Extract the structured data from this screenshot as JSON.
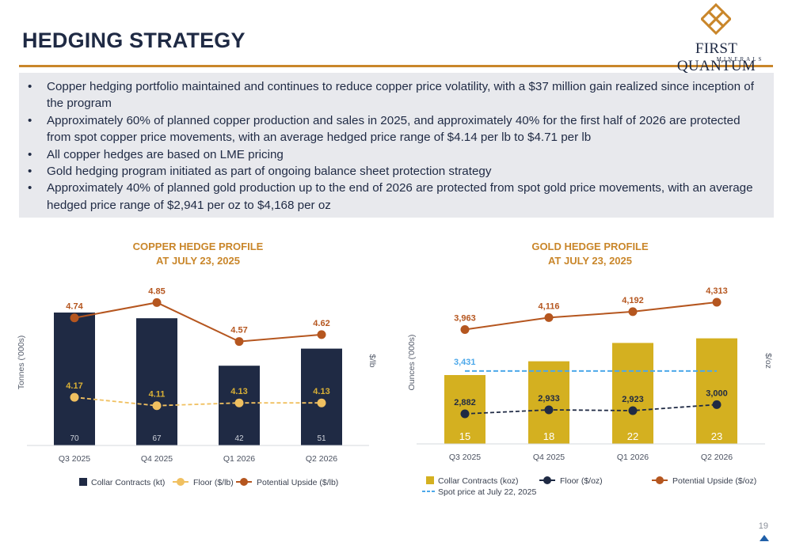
{
  "page": {
    "title": "HEDGING STRATEGY",
    "logo_name": "FIRST QUANTUM",
    "logo_sub": "MINERALS",
    "page_number": "19",
    "accent_color": "#c9862a",
    "navy_color": "#1f2a44"
  },
  "bullets": [
    "Copper hedging portfolio maintained and continues to reduce copper price volatility, with a $37 million gain realized since inception of the program",
    "Approximately 60% of planned copper production and sales in 2025, and approximately 40% for the first half of 2026 are protected from spot copper price movements, with an average hedged price range of $4.14 per lb to $4.71 per lb",
    "All copper hedges are based on LME pricing",
    "Gold hedging program initiated as part of ongoing balance sheet protection strategy",
    "Approximately 40% of planned gold production up to the end of 2026 are protected from spot gold price movements, with an average hedged price range of $2,941 per oz to $4,168 per oz"
  ],
  "chart_data": [
    {
      "type": "bar",
      "title": "COPPER HEDGE PROFILE",
      "subtitle": "AT JULY 23, 2025",
      "categories": [
        "Q3 2025",
        "Q4 2025",
        "Q1 2026",
        "Q2 2026"
      ],
      "ylabel": "Tonnes ('000s)",
      "y2label": "$/lb",
      "bar_color": "#1f2a44",
      "bar_label_color": "#d0d4dc",
      "bar_label_position": "inside-bottom",
      "series": [
        {
          "name": "Collar Contracts (kt)",
          "type": "bar",
          "values": [
            70,
            67,
            42,
            51
          ],
          "labels": [
            "70",
            "67",
            "42",
            "51"
          ]
        },
        {
          "name": "Floor ($/lb)",
          "type": "line",
          "style": "dashed",
          "color": "#f0c060",
          "label_color": "#d9b036",
          "values": [
            4.17,
            4.11,
            4.13,
            4.13
          ],
          "labels": [
            "4.17",
            "4.11",
            "4.13",
            "4.13"
          ]
        },
        {
          "name": "Potential Upside ($/lb)",
          "type": "line",
          "style": "solid",
          "color": "#b5561f",
          "label_color": "#b5561f",
          "values": [
            4.74,
            4.85,
            4.57,
            4.62
          ],
          "labels": [
            "4.74",
            "4.85",
            "4.57",
            "4.62"
          ]
        }
      ],
      "grid": false,
      "legend_position": "bottom"
    },
    {
      "type": "bar",
      "title": "GOLD HEDGE PROFILE",
      "subtitle": "AT JULY 23, 2025",
      "categories": [
        "Q3 2025",
        "Q4 2025",
        "Q1 2026",
        "Q2 2026"
      ],
      "ylabel": "Ounces ('000s)",
      "y2label": "$/oz",
      "bar_color": "#d4b020",
      "bar_label_color": "#ffffff",
      "bar_label_position": "inside-bottom",
      "series": [
        {
          "name": "Collar Contracts (koz)",
          "type": "bar",
          "values": [
            15,
            18,
            22,
            23
          ],
          "labels": [
            "15",
            "18",
            "22",
            "23"
          ]
        },
        {
          "name": "Floor ($/oz)",
          "type": "line",
          "style": "dashed",
          "color": "#1f2a44",
          "label_color": "#1f2a44",
          "values": [
            2882,
            2933,
            2923,
            3000
          ],
          "labels": [
            "2,882",
            "2,933",
            "2,923",
            "3,000"
          ]
        },
        {
          "name": "Potential Upside ($/oz)",
          "type": "line",
          "style": "solid",
          "color": "#b5561f",
          "label_color": "#b5561f",
          "values": [
            3963,
            4116,
            4192,
            4313
          ],
          "labels": [
            "3,963",
            "4,116",
            "4,192",
            "4,313"
          ]
        },
        {
          "name": "Spot price at July 22, 2025",
          "type": "reference",
          "style": "dashed",
          "color": "#4ca8ea",
          "value": 3431,
          "label": "3,431"
        }
      ],
      "grid": false,
      "legend_position": "bottom"
    }
  ]
}
